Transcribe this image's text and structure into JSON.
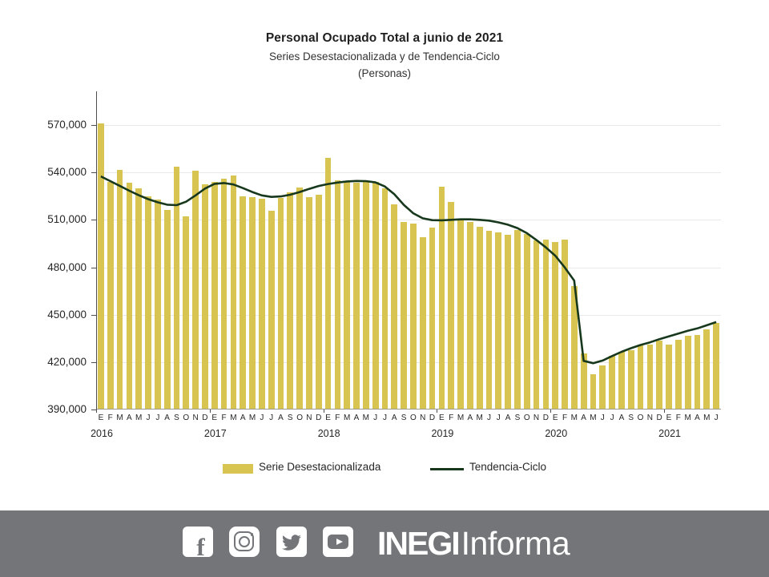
{
  "header": {
    "title": "Personal Ocupado Total a junio de 2021",
    "subtitle": "Series Desestacionalizada y de Tendencia-Ciclo",
    "unit": "(Personas)"
  },
  "chart_data": {
    "type": "bar",
    "title": "Personal Ocupado Total a junio de 2021",
    "subtitle": "Series Desestacionalizada y de Tendencia-Ciclo",
    "units": "Personas",
    "ylim": [
      390000,
      585000
    ],
    "yticks": [
      390000,
      420000,
      450000,
      480000,
      510000,
      540000,
      570000
    ],
    "grid": true,
    "legend_position": "bottom",
    "month_letters": [
      "E",
      "F",
      "M",
      "A",
      "M",
      "J",
      "J",
      "A",
      "S",
      "O",
      "N",
      "D"
    ],
    "years": [
      {
        "label": "2016",
        "n_months": 12
      },
      {
        "label": "2017",
        "n_months": 12
      },
      {
        "label": "2018",
        "n_months": 12
      },
      {
        "label": "2019",
        "n_months": 12
      },
      {
        "label": "2020",
        "n_months": 12
      },
      {
        "label": "2021",
        "n_months": 6
      }
    ],
    "series": [
      {
        "name": "Serie Desestacionalizada",
        "type": "bar",
        "color": "#d8c551",
        "values": [
          571000,
          534100,
          541400,
          533300,
          529900,
          524900,
          522700,
          516400,
          543400,
          512200,
          541300,
          532400,
          533800,
          536000,
          538300,
          524700,
          524200,
          523200,
          515600,
          523700,
          527400,
          530400,
          524500,
          525700,
          549300,
          535000,
          533800,
          533300,
          533800,
          533800,
          529900,
          519800,
          508700,
          507500,
          499100,
          505000,
          530800,
          521200,
          509700,
          508800,
          505500,
          502900,
          502100,
          500400,
          503500,
          501000,
          497000,
          497500,
          496000,
          497500,
          468000,
          425500,
          412300,
          418000,
          424000,
          426300,
          427700,
          430700,
          431300,
          433500,
          431300,
          434000,
          436800,
          437300,
          440700,
          444700
        ]
      },
      {
        "name": "Tendencia-Ciclo",
        "type": "line",
        "color": "#17381c",
        "values": [
          537500,
          534500,
          531500,
          528400,
          525600,
          523100,
          521100,
          519600,
          519300,
          521500,
          525500,
          529800,
          532800,
          533300,
          532400,
          530100,
          527600,
          525500,
          524500,
          524800,
          525900,
          527600,
          529600,
          531400,
          532700,
          533600,
          534300,
          534600,
          534500,
          533700,
          531100,
          526200,
          519500,
          514200,
          511000,
          509800,
          509700,
          510000,
          510300,
          510300,
          510000,
          509500,
          508400,
          506900,
          504800,
          501600,
          497300,
          492600,
          487300,
          479900,
          471600,
          420800,
          419300,
          421000,
          423800,
          426500,
          428800,
          430800,
          432500,
          434500,
          436300,
          438000,
          439800,
          441300,
          443300,
          445300
        ]
      }
    ]
  },
  "footer": {
    "background": "#737578",
    "icons": [
      "facebook-icon",
      "instagram-icon",
      "twitter-icon",
      "youtube-icon"
    ],
    "brand_bold": "INEGI",
    "brand_regular": "Informa"
  }
}
